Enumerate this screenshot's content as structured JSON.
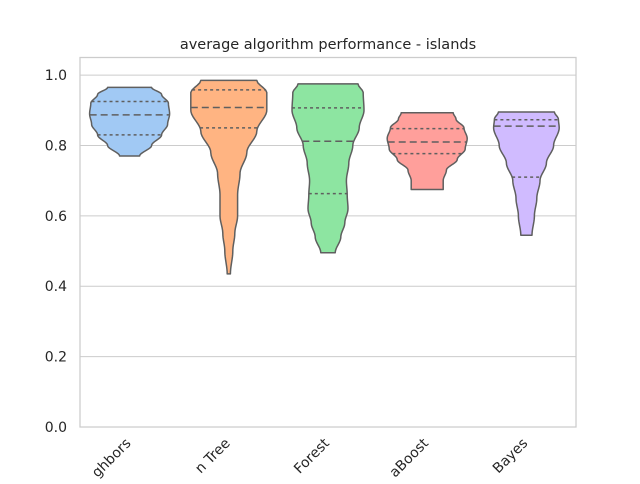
{
  "chart_data": {
    "type": "violin",
    "title": "average algorithm performance - islands",
    "xlabel": "",
    "ylabel": "",
    "ylim": [
      0.0,
      1.05
    ],
    "yticks": [
      0.0,
      0.2,
      0.4,
      0.6,
      0.8,
      1.0
    ],
    "ytick_labels": [
      "0.0",
      "0.2",
      "0.4",
      "0.6",
      "0.8",
      "1.0"
    ],
    "grid": "horizontal",
    "categories": [
      "K Nearest Neighbors",
      "Decision Tree",
      "Random Forest",
      "AdaBoost",
      "Naive Bayes"
    ],
    "category_tick_labels": [
      "ghbors",
      "n Tree",
      "Forest",
      "aBoost",
      "Bayes"
    ],
    "colors": [
      "#a1c9f4",
      "#ffb482",
      "#8de5a1",
      "#ff9f9b",
      "#d0bbff"
    ],
    "series": [
      {
        "min": 0.77,
        "max": 0.965,
        "q1": 0.83,
        "median": 0.887,
        "q3": 0.925,
        "profile": [
          [
            0.77,
            0.25
          ],
          [
            0.8,
            0.55
          ],
          [
            0.83,
            0.8
          ],
          [
            0.86,
            0.95
          ],
          [
            0.89,
            1.0
          ],
          [
            0.92,
            0.97
          ],
          [
            0.945,
            0.8
          ],
          [
            0.965,
            0.55
          ]
        ]
      },
      {
        "min": 0.435,
        "max": 0.985,
        "q1": 0.85,
        "median": 0.908,
        "q3": 0.958,
        "profile": [
          [
            0.435,
            0.04
          ],
          [
            0.5,
            0.1
          ],
          [
            0.55,
            0.15
          ],
          [
            0.6,
            0.22
          ],
          [
            0.66,
            0.22
          ],
          [
            0.72,
            0.28
          ],
          [
            0.78,
            0.45
          ],
          [
            0.84,
            0.7
          ],
          [
            0.9,
            0.95
          ],
          [
            0.95,
            0.95
          ],
          [
            0.985,
            0.7
          ]
        ]
      },
      {
        "min": 0.495,
        "max": 0.975,
        "q1": 0.663,
        "median": 0.812,
        "q3": 0.907,
        "profile": [
          [
            0.495,
            0.18
          ],
          [
            0.54,
            0.32
          ],
          [
            0.58,
            0.42
          ],
          [
            0.62,
            0.5
          ],
          [
            0.66,
            0.48
          ],
          [
            0.7,
            0.46
          ],
          [
            0.75,
            0.52
          ],
          [
            0.8,
            0.62
          ],
          [
            0.85,
            0.78
          ],
          [
            0.9,
            0.9
          ],
          [
            0.95,
            0.88
          ],
          [
            0.975,
            0.75
          ]
        ]
      },
      {
        "min": 0.675,
        "max": 0.893,
        "q1": 0.777,
        "median": 0.81,
        "q3": 0.848,
        "profile": [
          [
            0.675,
            0.4
          ],
          [
            0.7,
            0.4
          ],
          [
            0.73,
            0.48
          ],
          [
            0.76,
            0.75
          ],
          [
            0.79,
            0.95
          ],
          [
            0.82,
            1.0
          ],
          [
            0.85,
            0.92
          ],
          [
            0.875,
            0.72
          ],
          [
            0.893,
            0.65
          ]
        ]
      },
      {
        "min": 0.545,
        "max": 0.895,
        "q1": 0.71,
        "median": 0.855,
        "q3": 0.873,
        "profile": [
          [
            0.545,
            0.14
          ],
          [
            0.6,
            0.2
          ],
          [
            0.65,
            0.26
          ],
          [
            0.7,
            0.34
          ],
          [
            0.75,
            0.5
          ],
          [
            0.8,
            0.68
          ],
          [
            0.85,
            0.82
          ],
          [
            0.875,
            0.8
          ],
          [
            0.895,
            0.7
          ]
        ]
      }
    ]
  }
}
